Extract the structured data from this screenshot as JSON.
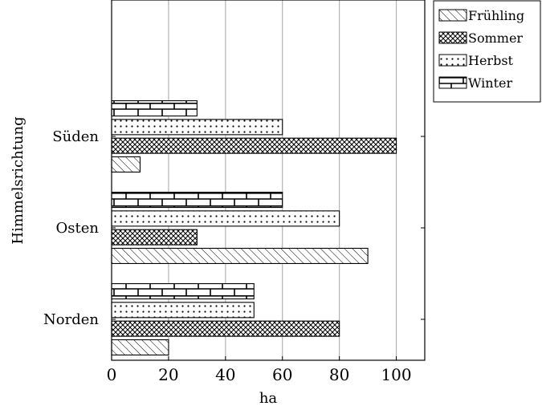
{
  "chart_data": {
    "type": "bar",
    "orientation": "horizontal",
    "categories": [
      "Norden",
      "Osten",
      "Süden"
    ],
    "series": [
      {
        "name": "Frühling",
        "values": [
          20,
          90,
          10
        ],
        "pattern": "diagonal-lines"
      },
      {
        "name": "Sommer",
        "values": [
          80,
          30,
          100
        ],
        "pattern": "crosshatch"
      },
      {
        "name": "Herbst",
        "values": [
          50,
          80,
          60
        ],
        "pattern": "dots"
      },
      {
        "name": "Winter",
        "values": [
          50,
          60,
          30
        ],
        "pattern": "bricks"
      }
    ],
    "xlabel": "ha",
    "ylabel": "Himmelsrichtung",
    "xlim": [
      0,
      110
    ],
    "xticks": [
      0,
      20,
      40,
      60,
      80,
      100
    ],
    "grid": "vertical",
    "legend": "outside-top-right"
  }
}
